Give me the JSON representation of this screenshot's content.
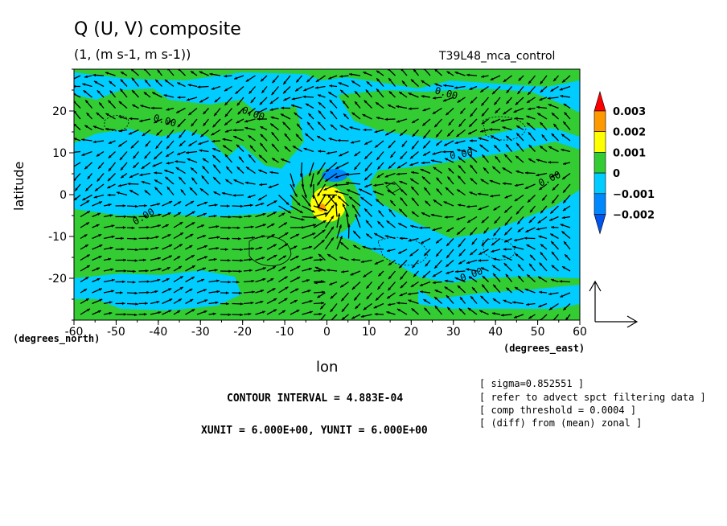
{
  "header": {
    "title": "Q (U, V) composite",
    "subtitle": "(1, (m s-1, m s-1))",
    "run_name": "T39L48_mca_control"
  },
  "axes_text": {
    "xlabel": "lon",
    "ylabel": "latitude",
    "x_unit": "(degrees_east)",
    "y_unit": "(degrees_north)"
  },
  "footer": {
    "contour_interval": "CONTOUR INTERVAL = 4.883E-04",
    "unit_scale": "XUNIT = 6.000E+00, YUNIT = 6.000E+00",
    "notes": [
      "[ sigma=0.852551 ]",
      "[ refer to advect spct filtering data ]",
      "[ comp threshold = 0.0004 ]",
      "[ (diff) from (mean) zonal ]"
    ]
  },
  "colors": {
    "red": "#ff0000",
    "orange": "#ff9900",
    "yellow": "#ffff00",
    "green": "#33cc33",
    "cyan": "#00ccff",
    "blue": "#0088ff",
    "darkblue": "#0055ee"
  },
  "chart_data": {
    "type": "heatmap",
    "title": "Q (U, V) composite",
    "xlabel": "lon",
    "ylabel": "latitude",
    "xlim": [
      -60,
      60
    ],
    "ylim": [
      -30,
      30
    ],
    "x_ticks": [
      "-60",
      "-50",
      "-40",
      "-30",
      "-20",
      "-10",
      "0",
      "10",
      "20",
      "30",
      "40",
      "50",
      "60"
    ],
    "y_ticks": [
      "-20",
      "-10",
      "0",
      "10",
      "20"
    ],
    "contour_labels": [
      "0.00",
      "0.00",
      "0.00",
      "0.00",
      "0.00",
      "0.00",
      "0.00"
    ],
    "legend": {
      "labels": [
        "0.003",
        "0.002",
        "0.001",
        "0",
        "−0.001",
        "−0.002"
      ],
      "colors": [
        "#ff0000",
        "#ff9900",
        "#ffff00",
        "#33cc33",
        "#00ccff",
        "#0088ff",
        "#0055ee"
      ]
    },
    "vector_overlay": "wind vectors (U, V)"
  }
}
